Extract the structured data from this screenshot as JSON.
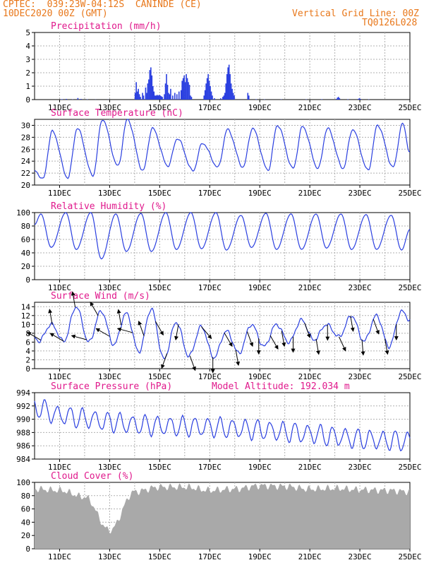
{
  "header": {
    "line1_left": "CPTEC:  039:23W-04:12S  CANINDE (CE)",
    "line2_left": "10DEC2020 00Z (GMT)",
    "line2_right": "Vertical Grid Line: 00Z",
    "line3_right": "TQ0126L028"
  },
  "colors": {
    "header_text": "#e8771a",
    "panel_title": "#e0198c",
    "series_line": "#2a3fe0",
    "cloud_fill": "#a9a9a9",
    "wind_arrow": "#000000",
    "grid": "#b0b0b0"
  },
  "x_tick_labels": [
    "11DEC",
    "13DEC",
    "15DEC",
    "17DEC",
    "19DEC",
    "21DEC",
    "23DEC",
    "25DEC"
  ],
  "chart_data": [
    {
      "id": "precip",
      "type": "bar",
      "title": "Precipitation (mm/h)",
      "ylim": [
        0,
        5
      ],
      "yticks": [
        0,
        1,
        2,
        3,
        4,
        5
      ],
      "grid": true,
      "x_unit": "hours since 10DEC2020 00Z",
      "events": [
        [
          25,
          0.02
        ],
        [
          26,
          0.03
        ],
        [
          30,
          0.05
        ],
        [
          36,
          0.02
        ],
        [
          41,
          0.12
        ],
        [
          44,
          0.05
        ],
        [
          50,
          0.02
        ],
        [
          58,
          0.01
        ],
        [
          70,
          0.01
        ],
        [
          96,
          0.5
        ],
        [
          97,
          1.3
        ],
        [
          98,
          0.6
        ],
        [
          99,
          0.8
        ],
        [
          100,
          0.4
        ],
        [
          101,
          0.2
        ],
        [
          103,
          0.5
        ],
        [
          104,
          0.3
        ],
        [
          106,
          0.9
        ],
        [
          107,
          0.5
        ],
        [
          108,
          1.2
        ],
        [
          109,
          1.5
        ],
        [
          110,
          2.2
        ],
        [
          111,
          2.4
        ],
        [
          112,
          1.8
        ],
        [
          113,
          1.0
        ],
        [
          114,
          0.6
        ],
        [
          115,
          0.3
        ],
        [
          116,
          0.3
        ],
        [
          117,
          0.35
        ],
        [
          118,
          0.3
        ],
        [
          119,
          0.35
        ],
        [
          120,
          0.3
        ],
        [
          121,
          0.25
        ],
        [
          122,
          0.2
        ],
        [
          124,
          0.4
        ],
        [
          125,
          1.2
        ],
        [
          126,
          1.9
        ],
        [
          127,
          1.1
        ],
        [
          128,
          0.5
        ],
        [
          129,
          0.4
        ],
        [
          130,
          0.8
        ],
        [
          132,
          0.3
        ],
        [
          134,
          0.5
        ],
        [
          136,
          0.4
        ],
        [
          138,
          0.6
        ],
        [
          140,
          0.7
        ],
        [
          141,
          1.4
        ],
        [
          142,
          1.6
        ],
        [
          143,
          1.8
        ],
        [
          144,
          1.3
        ],
        [
          145,
          1.9
        ],
        [
          146,
          1.6
        ],
        [
          147,
          1.3
        ],
        [
          148,
          1.1
        ],
        [
          149,
          0.3
        ],
        [
          150,
          0.2
        ],
        [
          162,
          0.3
        ],
        [
          163,
          0.7
        ],
        [
          164,
          1.2
        ],
        [
          165,
          1.6
        ],
        [
          166,
          1.9
        ],
        [
          167,
          1.4
        ],
        [
          168,
          1.0
        ],
        [
          169,
          0.6
        ],
        [
          170,
          0.3
        ],
        [
          172,
          0.1
        ],
        [
          178,
          0.1
        ],
        [
          180,
          0.2
        ],
        [
          181,
          0.3
        ],
        [
          182,
          0.5
        ],
        [
          183,
          1.2
        ],
        [
          184,
          1.9
        ],
        [
          185,
          2.4
        ],
        [
          186,
          2.6
        ],
        [
          187,
          1.9
        ],
        [
          188,
          1.2
        ],
        [
          189,
          0.8
        ],
        [
          190,
          0.5
        ],
        [
          191,
          0.3
        ],
        [
          204,
          0.5
        ],
        [
          205,
          0.3
        ],
        [
          212,
          0.03
        ],
        [
          220,
          0.02
        ],
        [
          236,
          0.02
        ],
        [
          260,
          0.02
        ],
        [
          275,
          0.03
        ],
        [
          289,
          0.05
        ],
        [
          290,
          0.15
        ],
        [
          291,
          0.2
        ],
        [
          292,
          0.1
        ],
        [
          300,
          0.03
        ],
        [
          310,
          0.05
        ],
        [
          311,
          0.1
        ],
        [
          312,
          0.05
        ],
        [
          320,
          0.02
        ]
      ]
    },
    {
      "id": "temp",
      "type": "line",
      "title": "Surface Temperature (nC)",
      "ylim": [
        20,
        31
      ],
      "yticks": [
        20,
        22,
        24,
        26,
        28,
        30
      ],
      "grid": true,
      "daily_min": [
        21.0,
        21.2,
        21.6,
        23.2,
        22.4,
        23.2,
        22.4,
        23.0,
        23.0,
        22.5,
        22.8,
        22.8,
        22.8,
        22.5,
        23.0,
        23.0
      ],
      "daily_max": [
        29.0,
        29.5,
        31.0,
        31.0,
        29.5,
        27.8,
        27.0,
        29.3,
        29.5,
        30.0,
        29.8,
        29.5,
        29.3,
        30.0,
        30.3
      ],
      "start_value": 22.4,
      "end_value": 25.5
    },
    {
      "id": "rh",
      "type": "line",
      "title": "Relative Humidity (%)",
      "ylim": [
        0,
        100
      ],
      "yticks": [
        0,
        20,
        40,
        60,
        80,
        100
      ],
      "grid": true,
      "daily_max": [
        98,
        100,
        100,
        98,
        99,
        100,
        100,
        100,
        96,
        99,
        98,
        98,
        98,
        97,
        96,
        98
      ],
      "daily_min": [
        48,
        45,
        31,
        42,
        42,
        45,
        46,
        44,
        48,
        45,
        45,
        47,
        45,
        45,
        44
      ],
      "start_value": 82,
      "end_value": 75
    },
    {
      "id": "wind",
      "type": "line",
      "title": "Surface Wind (m/s)",
      "ylim": [
        0,
        15
      ],
      "yticks": [
        0,
        2,
        4,
        6,
        8,
        10,
        12,
        14
      ],
      "grid": true,
      "daily_max": [
        10.0,
        14.0,
        13.0,
        12.5,
        13.5,
        10.5,
        9.5,
        8.5,
        10.0,
        10.0,
        11.0,
        10.0,
        12.0,
        12.0,
        13.0,
        13.0
      ],
      "daily_min": [
        6.2,
        6.2,
        6.0,
        5.4,
        3.8,
        2.2,
        2.8,
        2.5,
        3.5,
        5.0,
        6.0,
        6.5,
        7.2,
        6.2,
        5.0
      ],
      "start_value": 7.0,
      "end_value": 11.0,
      "arrows_direction_deg": [
        150,
        100,
        150,
        100,
        165,
        120,
        150,
        100,
        165,
        110,
        300,
        250,
        260,
        290,
        310,
        270,
        300,
        280,
        290,
        270,
        300,
        280,
        270,
        290,
        280,
        270,
        295,
        280,
        275,
        290,
        280,
        270
      ],
      "arrows_speed": [
        7,
        10,
        7,
        12,
        7,
        11,
        6,
        12,
        5,
        10,
        4,
        9,
        3,
        8,
        3,
        8,
        4,
        8,
        5,
        8,
        6,
        8,
        7,
        8,
        7,
        8,
        7,
        8,
        6,
        8,
        6,
        8
      ]
    },
    {
      "id": "pressure",
      "type": "line",
      "title": "Surface Pressure (hPa)",
      "annotation": "Model Altitude: 192.034 m",
      "ylim": [
        984,
        994
      ],
      "yticks": [
        984,
        986,
        988,
        990,
        992,
        994
      ],
      "grid": true,
      "daily_trend": [
        991.8,
        990.6,
        990.1,
        989.6,
        989.2,
        989.0,
        988.9,
        988.8,
        988.6,
        988.4,
        988.1,
        987.8,
        987.4,
        987.0,
        986.8,
        986.7
      ],
      "semidiurnal_amplitude": 1.4,
      "start_value": 991.5,
      "end_value": 986.2
    },
    {
      "id": "cloud",
      "type": "area",
      "title": "Cloud Cover (%)",
      "ylim": [
        0,
        100
      ],
      "yticks": [
        0,
        20,
        40,
        60,
        80,
        100
      ],
      "grid": true,
      "daily_mean": [
        92,
        90,
        80,
        30,
        88,
        95,
        95,
        90,
        92,
        97,
        96,
        92,
        93,
        91,
        90,
        88
      ]
    }
  ]
}
